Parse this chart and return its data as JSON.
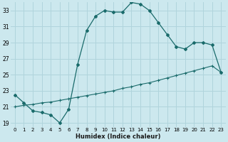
{
  "xlabel": "Humidex (Indice chaleur)",
  "bg_color": "#cce8ee",
  "grid_color": "#b0d4dc",
  "line_color": "#1a6b6b",
  "xlim": [
    -0.5,
    23.5
  ],
  "ylim": [
    18.5,
    34.0
  ],
  "xtick_labels": [
    "0",
    "1",
    "2",
    "3",
    "4",
    "5",
    "6",
    "7",
    "8",
    "9",
    "10",
    "11",
    "12",
    "13",
    "14",
    "15",
    "16",
    "17",
    "18",
    "19",
    "20",
    "21",
    "22",
    "23"
  ],
  "ytick_vals": [
    19,
    21,
    23,
    25,
    27,
    29,
    31,
    33
  ],
  "ytick_labels": [
    "19",
    "21",
    "23",
    "25",
    "27",
    "29",
    "31",
    "33"
  ],
  "curve1_x": [
    0,
    1,
    2,
    3,
    4,
    5,
    6,
    7,
    8,
    9,
    10,
    11,
    12,
    13,
    14,
    15,
    16,
    17,
    18,
    19,
    20,
    21,
    22,
    23
  ],
  "curve1_y": [
    22.5,
    21.5,
    20.5,
    20.3,
    20.0,
    19.0,
    20.7,
    26.3,
    30.5,
    32.3,
    33.0,
    32.8,
    32.8,
    34.0,
    33.8,
    33.0,
    31.5,
    30.0,
    28.5,
    28.2,
    29.0,
    29.0,
    28.7,
    25.3
  ],
  "curve2_x": [
    0,
    1,
    2,
    3,
    4,
    5,
    6,
    7,
    8,
    9,
    10,
    11,
    12,
    13,
    14,
    15,
    16,
    17,
    18,
    19,
    20,
    21,
    22,
    23
  ],
  "curve2_y": [
    21.0,
    21.2,
    21.3,
    21.5,
    21.6,
    21.8,
    22.0,
    22.2,
    22.4,
    22.6,
    22.8,
    23.0,
    23.3,
    23.5,
    23.8,
    24.0,
    24.3,
    24.6,
    24.9,
    25.2,
    25.5,
    25.8,
    26.1,
    25.3
  ]
}
